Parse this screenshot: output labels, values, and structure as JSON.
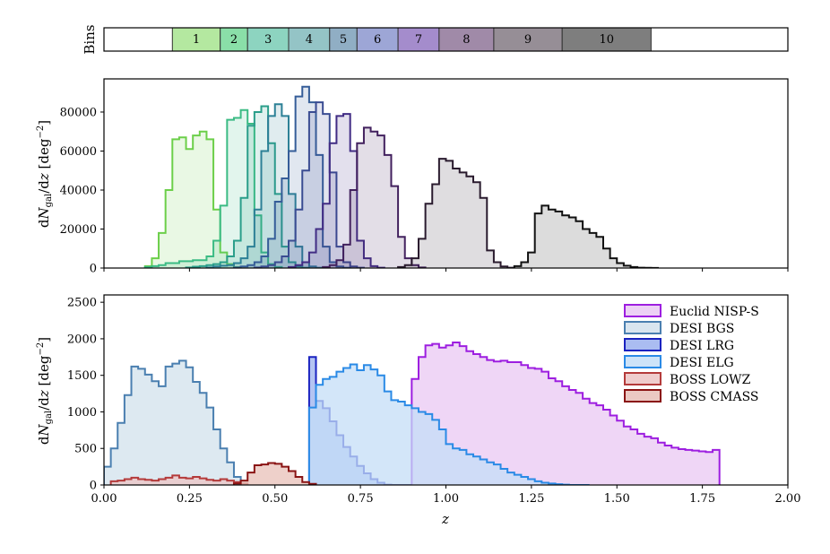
{
  "chart_data": [
    {
      "type": "table",
      "ylabel": "Bins",
      "cells": [
        {
          "label": "1",
          "z_range": [
            0.2,
            0.34
          ],
          "color": "#b4e8a0"
        },
        {
          "label": "2",
          "z_range": [
            0.34,
            0.42
          ],
          "color": "#8adfa8"
        },
        {
          "label": "3",
          "z_range": [
            0.42,
            0.54
          ],
          "color": "#8dd4c0"
        },
        {
          "label": "4",
          "z_range": [
            0.54,
            0.66
          ],
          "color": "#94c4c6"
        },
        {
          "label": "5",
          "z_range": [
            0.66,
            0.74
          ],
          "color": "#90aec4"
        },
        {
          "label": "6",
          "z_range": [
            0.74,
            0.86
          ],
          "color": "#9da6d6"
        },
        {
          "label": "7",
          "z_range": [
            0.86,
            0.98
          ],
          "color": "#a48ccc"
        },
        {
          "label": "8",
          "z_range": [
            0.98,
            1.14
          ],
          "color": "#a08aa8"
        },
        {
          "label": "9",
          "z_range": [
            1.14,
            1.34
          ],
          "color": "#968e96"
        },
        {
          "label": "10",
          "z_range": [
            1.34,
            1.6
          ],
          "color": "#7e7e7e"
        }
      ],
      "xlim": [
        0,
        2.0
      ]
    },
    {
      "type": "area",
      "xlabel": "",
      "ylabel": "dN_gal/dz [deg^-2]",
      "ylabel_parts": {
        "pre": "d",
        "N": "N",
        "sub": "gal",
        "post": "/d",
        "z": "z",
        "unit_pre": " [deg",
        "unit_sup": "−2",
        "unit_post": "]"
      },
      "xlim": [
        0,
        2.0
      ],
      "ylim": [
        0,
        97000
      ],
      "yticks": [
        "0",
        "20000",
        "40000",
        "60000",
        "80000"
      ],
      "ytick_values": [
        0,
        20000,
        40000,
        60000,
        80000
      ],
      "bin_width": 0.02,
      "series": [
        {
          "color": "#6ccf4a",
          "x_start": 0.12,
          "values": [
            1000,
            5000,
            18000,
            40000,
            66000,
            67000,
            61000,
            68000,
            70000,
            66000,
            30000,
            8000,
            2000,
            500
          ]
        },
        {
          "color": "#3bbb84",
          "x_start": 0.12,
          "values": [
            500,
            1000,
            1500,
            2500,
            2500,
            3500,
            3500,
            4000,
            4000,
            6000,
            14000,
            32000,
            76000,
            77000,
            81000,
            74000,
            27000,
            8000,
            2000,
            500
          ]
        },
        {
          "color": "#2a9e8a",
          "x_start": 0.24,
          "values": [
            300,
            700,
            1000,
            1500,
            2000,
            3000,
            6000,
            14000,
            36000,
            73000,
            80000,
            83000,
            64000,
            38000,
            11000,
            3000,
            800,
            200
          ]
        },
        {
          "color": "#2c8096",
          "x_start": 0.3,
          "values": [
            300,
            800,
            1200,
            1500,
            2500,
            5000,
            11000,
            30000,
            60000,
            78000,
            84000,
            78000,
            38000,
            11000,
            3000,
            800,
            200
          ]
        },
        {
          "color": "#355d98",
          "x_start": 0.38,
          "values": [
            300,
            800,
            1500,
            3000,
            6000,
            15000,
            34000,
            46000,
            60000,
            88000,
            93000,
            85000,
            58000,
            11000,
            3000,
            800,
            200
          ]
        },
        {
          "color": "#3a4c92",
          "x_start": 0.44,
          "values": [
            300,
            800,
            1500,
            3000,
            6000,
            14000,
            30000,
            50000,
            80000,
            85000,
            79000,
            49000,
            11000,
            3000,
            800,
            200
          ]
        },
        {
          "color": "#412c84",
          "x_start": 0.54,
          "values": [
            500,
            1500,
            3000,
            8000,
            20000,
            33000,
            64000,
            78000,
            79000,
            60000,
            14000,
            5000,
            1000,
            200
          ]
        },
        {
          "color": "#42215e",
          "x_start": 0.64,
          "values": [
            500,
            1500,
            4000,
            12000,
            40000,
            64000,
            72000,
            70000,
            68000,
            58000,
            42000,
            16000,
            5000,
            1500,
            300
          ]
        },
        {
          "color": "#2a1b2e",
          "x_start": 0.86,
          "values": [
            500,
            1500,
            5000,
            15000,
            33000,
            43000,
            56000,
            55000,
            51000,
            49000,
            47000,
            44000,
            36000,
            9000,
            3000,
            800,
            200
          ]
        },
        {
          "color": "#111111",
          "x_start": 1.2,
          "values": [
            1000,
            3000,
            8000,
            28000,
            32000,
            30000,
            29000,
            27000,
            26000,
            24000,
            20000,
            18000,
            16000,
            10000,
            5000,
            2500,
            1200,
            500,
            200,
            100,
            50
          ]
        }
      ]
    },
    {
      "type": "area",
      "xlabel": "z",
      "ylabel": "dN_gal/dz [deg^-2]",
      "xlim": [
        0,
        2.0
      ],
      "ylim": [
        0,
        2600
      ],
      "xticks": [
        "0.00",
        "0.25",
        "0.50",
        "0.75",
        "1.00",
        "1.25",
        "1.50",
        "1.75",
        "2.00"
      ],
      "xtick_values": [
        0,
        0.25,
        0.5,
        0.75,
        1.0,
        1.25,
        1.5,
        1.75,
        2.0
      ],
      "yticks": [
        "0",
        "500",
        "1000",
        "1500",
        "2000",
        "2500"
      ],
      "ytick_values": [
        0,
        500,
        1000,
        1500,
        2000,
        2500
      ],
      "bin_width": 0.02,
      "legend_position": "top-right",
      "series": [
        {
          "name": "Euclid NISP-S",
          "edge": "#9d1ee0",
          "fill": "#e9c8f3",
          "x_start": 0.9,
          "values": [
            1450,
            1750,
            1910,
            1930,
            1880,
            1910,
            1950,
            1900,
            1830,
            1790,
            1750,
            1710,
            1690,
            1700,
            1680,
            1680,
            1640,
            1600,
            1590,
            1550,
            1460,
            1420,
            1350,
            1300,
            1260,
            1180,
            1120,
            1090,
            1030,
            950,
            880,
            800,
            760,
            700,
            660,
            640,
            580,
            540,
            510,
            490,
            480,
            470,
            460,
            450,
            480
          ]
        },
        {
          "name": "DESI BGS",
          "edge": "#4a7fb0",
          "fill": "#d2e1ec",
          "x_start": 0.0,
          "values": [
            250,
            500,
            850,
            1230,
            1620,
            1590,
            1510,
            1420,
            1350,
            1620,
            1660,
            1700,
            1610,
            1410,
            1260,
            1060,
            760,
            500,
            310,
            110
          ]
        },
        {
          "name": "DESI LRG",
          "edge": "#1a22c0",
          "fill": "#9bb0ee",
          "x_start": 0.6,
          "values": [
            1750,
            1150,
            1050,
            870,
            680,
            520,
            390,
            260,
            160,
            80,
            30,
            5,
            0,
            0,
            0
          ]
        },
        {
          "name": "DESI ELG",
          "edge": "#2a8ae6",
          "fill": "#c4def7",
          "x_start": 0.6,
          "values": [
            1060,
            1370,
            1450,
            1480,
            1550,
            1600,
            1650,
            1570,
            1640,
            1580,
            1500,
            1280,
            1160,
            1140,
            1090,
            1050,
            1000,
            970,
            890,
            760,
            560,
            500,
            480,
            420,
            390,
            350,
            310,
            280,
            220,
            170,
            140,
            110,
            80,
            50,
            30,
            20,
            10,
            5,
            0,
            0,
            0
          ]
        },
        {
          "name": "BOSS LOWZ",
          "edge": "#b43a3a",
          "fill": "#ecc4c4",
          "x_start": 0.02,
          "values": [
            50,
            60,
            80,
            100,
            80,
            70,
            60,
            80,
            100,
            130,
            100,
            90,
            110,
            90,
            70,
            60,
            80,
            60,
            40,
            20
          ]
        },
        {
          "name": "BOSS CMASS",
          "edge": "#8a1414",
          "fill": "#e8c0b8",
          "x_start": 0.38,
          "values": [
            20,
            60,
            170,
            270,
            280,
            300,
            290,
            250,
            190,
            110,
            40,
            15
          ]
        }
      ]
    }
  ]
}
